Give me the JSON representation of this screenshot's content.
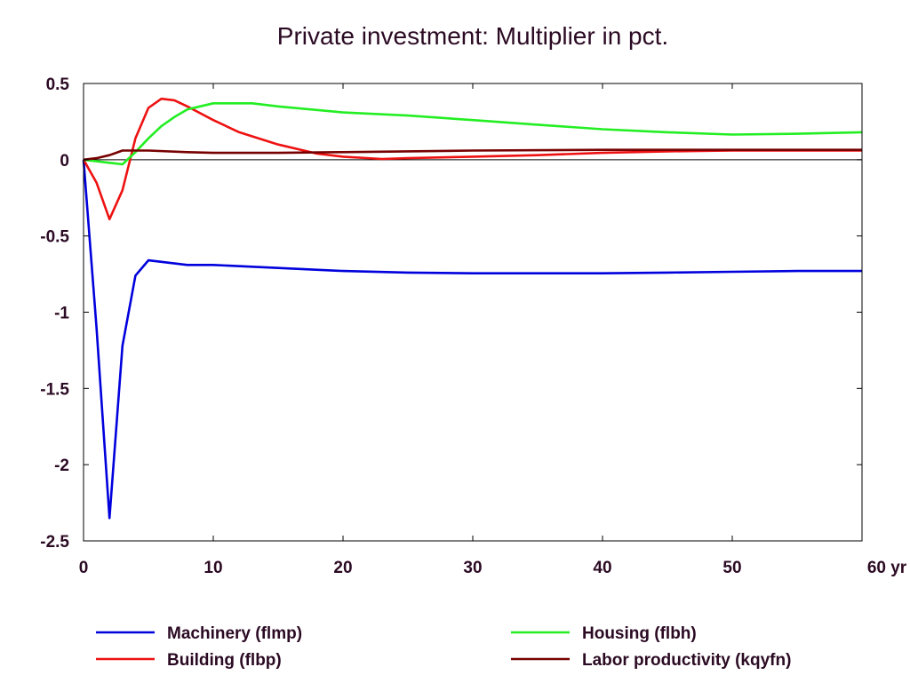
{
  "chart_data": {
    "type": "line",
    "title": "Private investment: Multiplier in pct.",
    "xlabel": "",
    "ylabel": "",
    "x_unit": "yr",
    "xlim": [
      0,
      60
    ],
    "ylim": [
      -2.5,
      0.5
    ],
    "x_ticks": [
      0,
      10,
      20,
      30,
      40,
      50,
      60
    ],
    "y_ticks": [
      0.5,
      0,
      -0.5,
      -1,
      -1.5,
      -2,
      -2.5
    ],
    "x_tick_labels": [
      "0",
      "10",
      "20",
      "30",
      "40",
      "50",
      "60 yr"
    ],
    "y_tick_labels": [
      "0.5",
      "0",
      "-0.5",
      "-1",
      "-1.5",
      "-2",
      "-2.5"
    ],
    "grid": false,
    "zero_line": true,
    "legend_position": "bottom",
    "series": [
      {
        "name": "Machinery (flmp)",
        "color": "#0000dd",
        "points": [
          [
            0,
            0
          ],
          [
            1,
            -1.1
          ],
          [
            2,
            -2.35
          ],
          [
            3,
            -1.22
          ],
          [
            4,
            -0.76
          ],
          [
            5,
            -0.66
          ],
          [
            6,
            -0.67
          ],
          [
            8,
            -0.69
          ],
          [
            10,
            -0.69
          ],
          [
            15,
            -0.71
          ],
          [
            20,
            -0.73
          ],
          [
            25,
            -0.74
          ],
          [
            30,
            -0.745
          ],
          [
            35,
            -0.745
          ],
          [
            40,
            -0.745
          ],
          [
            45,
            -0.74
          ],
          [
            50,
            -0.735
          ],
          [
            55,
            -0.73
          ],
          [
            60,
            -0.73
          ]
        ]
      },
      {
        "name": "Building (flbp)",
        "color": "#ee1111",
        "points": [
          [
            0,
            0
          ],
          [
            1,
            -0.15
          ],
          [
            2,
            -0.39
          ],
          [
            3,
            -0.2
          ],
          [
            4,
            0.14
          ],
          [
            5,
            0.34
          ],
          [
            6,
            0.4
          ],
          [
            7,
            0.39
          ],
          [
            8,
            0.35
          ],
          [
            10,
            0.26
          ],
          [
            12,
            0.18
          ],
          [
            15,
            0.1
          ],
          [
            18,
            0.04
          ],
          [
            20,
            0.02
          ],
          [
            23,
            0.005
          ],
          [
            25,
            0.01
          ],
          [
            30,
            0.02
          ],
          [
            35,
            0.03
          ],
          [
            40,
            0.045
          ],
          [
            45,
            0.055
          ],
          [
            50,
            0.06
          ],
          [
            55,
            0.06
          ],
          [
            60,
            0.06
          ]
        ]
      },
      {
        "name": "Housing (flbh)",
        "color": "#22ee22",
        "points": [
          [
            0,
            0
          ],
          [
            1,
            -0.01
          ],
          [
            2,
            -0.02
          ],
          [
            3,
            -0.03
          ],
          [
            4,
            0.05
          ],
          [
            5,
            0.14
          ],
          [
            6,
            0.22
          ],
          [
            7,
            0.28
          ],
          [
            8,
            0.33
          ],
          [
            10,
            0.37
          ],
          [
            13,
            0.37
          ],
          [
            15,
            0.35
          ],
          [
            20,
            0.31
          ],
          [
            25,
            0.29
          ],
          [
            30,
            0.26
          ],
          [
            35,
            0.23
          ],
          [
            40,
            0.2
          ],
          [
            45,
            0.18
          ],
          [
            50,
            0.165
          ],
          [
            55,
            0.17
          ],
          [
            60,
            0.18
          ]
        ]
      },
      {
        "name": "Labor productivity (kqyfn)",
        "color": "#770000",
        "points": [
          [
            0,
            0
          ],
          [
            1,
            0.01
          ],
          [
            2,
            0.03
          ],
          [
            3,
            0.06
          ],
          [
            5,
            0.06
          ],
          [
            8,
            0.05
          ],
          [
            10,
            0.045
          ],
          [
            15,
            0.045
          ],
          [
            20,
            0.05
          ],
          [
            25,
            0.055
          ],
          [
            30,
            0.06
          ],
          [
            40,
            0.065
          ],
          [
            50,
            0.065
          ],
          [
            60,
            0.065
          ]
        ]
      }
    ]
  }
}
